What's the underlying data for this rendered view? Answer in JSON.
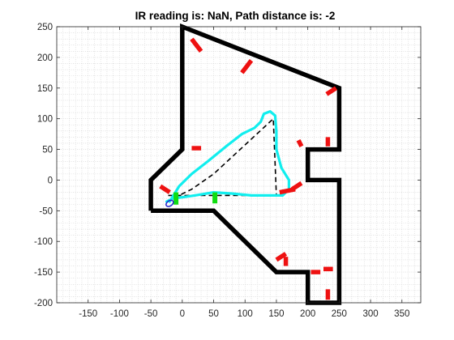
{
  "title": "IR reading is: NaN, Path distance is: -2",
  "chart_data": {
    "type": "line",
    "title": "IR reading is: NaN, Path distance is: -2",
    "xlabel": "",
    "ylabel": "",
    "xlim": [
      -200,
      380
    ],
    "ylim": [
      -200,
      250
    ],
    "xticks": [
      -150,
      -100,
      -50,
      0,
      50,
      100,
      150,
      200,
      250,
      300,
      350
    ],
    "yticks": [
      -200,
      -150,
      -100,
      -50,
      0,
      50,
      100,
      150,
      200,
      250
    ],
    "grid": "minor, light gray dotted",
    "colors": {
      "walls": "#000000",
      "targets": "#ee1111",
      "robot_path": "#11eeee",
      "planned_path": "#000000",
      "waypoints": "#11dd11",
      "robot": "#2222cc"
    },
    "series": [
      {
        "role": "walls",
        "style": "thick black line",
        "points": [
          [
            -50,
            -50
          ],
          [
            -50,
            0
          ],
          [
            0,
            50
          ],
          [
            0,
            250
          ],
          [
            250,
            150
          ],
          [
            250,
            50
          ],
          [
            200,
            50
          ],
          [
            200,
            0
          ],
          [
            250,
            0
          ],
          [
            250,
            -200
          ],
          [
            200,
            -200
          ],
          [
            200,
            -150
          ],
          [
            150,
            -150
          ],
          [
            50,
            -50
          ],
          [
            -50,
            -50
          ]
        ]
      },
      {
        "role": "planned_path",
        "style": "dashed black line",
        "points": [
          [
            -25,
            -35
          ],
          [
            15,
            -15
          ],
          [
            50,
            10
          ],
          [
            145,
            100
          ],
          [
            150,
            -25
          ],
          [
            -25,
            -25
          ]
        ]
      },
      {
        "role": "robot_path",
        "style": "cyan line",
        "points": [
          [
            -20,
            -35
          ],
          [
            -5,
            -10
          ],
          [
            15,
            10
          ],
          [
            40,
            30
          ],
          [
            70,
            55
          ],
          [
            95,
            75
          ],
          [
            115,
            85
          ],
          [
            125,
            95
          ],
          [
            130,
            108
          ],
          [
            140,
            112
          ],
          [
            148,
            105
          ],
          [
            150,
            80
          ],
          [
            150,
            50
          ],
          [
            158,
            20
          ],
          [
            170,
            0
          ],
          [
            170,
            -15
          ],
          [
            160,
            -25
          ],
          [
            140,
            -25
          ],
          [
            110,
            -25
          ],
          [
            80,
            -22
          ],
          [
            50,
            -20
          ],
          [
            20,
            -25
          ],
          [
            0,
            -28
          ],
          [
            -15,
            -30
          ],
          [
            -25,
            -35
          ]
        ]
      },
      {
        "role": "target_segments",
        "style": "thick red dashes",
        "segments": [
          [
            [
              15,
              230
            ],
            [
              30,
              210
            ]
          ],
          [
            [
              110,
              195
            ],
            [
              95,
              175
            ]
          ],
          [
            [
              230,
              140
            ],
            [
              245,
              150
            ]
          ],
          [
            [
              15,
              52
            ],
            [
              30,
              52
            ]
          ],
          [
            [
              -35,
              -10
            ],
            [
              -20,
              -20
            ]
          ],
          [
            [
              185,
              65
            ],
            [
              190,
              55
            ]
          ],
          [
            [
              232,
              70
            ],
            [
              232,
              55
            ]
          ],
          [
            [
              175,
              -15
            ],
            [
              190,
              -5
            ]
          ],
          [
            [
              155,
              -20
            ],
            [
              180,
              -15
            ]
          ],
          [
            [
              150,
              -130
            ],
            [
              165,
              -120
            ]
          ],
          [
            [
              165,
              -125
            ],
            [
              165,
              -140
            ]
          ],
          [
            [
              205,
              -150
            ],
            [
              220,
              -150
            ]
          ],
          [
            [
              225,
              -145
            ],
            [
              240,
              -145
            ]
          ],
          [
            [
              232,
              -178
            ],
            [
              232,
              -195
            ]
          ]
        ]
      },
      {
        "role": "waypoints",
        "style": "thick green vertical segments",
        "segments": [
          [
            [
              -10,
              -20
            ],
            [
              -10,
              -40
            ]
          ],
          [
            [
              52,
              -20
            ],
            [
              52,
              -38
            ]
          ]
        ]
      },
      {
        "role": "robot",
        "style": "small blue ellipse",
        "points": [
          [
            -20,
            -38
          ]
        ]
      }
    ]
  }
}
